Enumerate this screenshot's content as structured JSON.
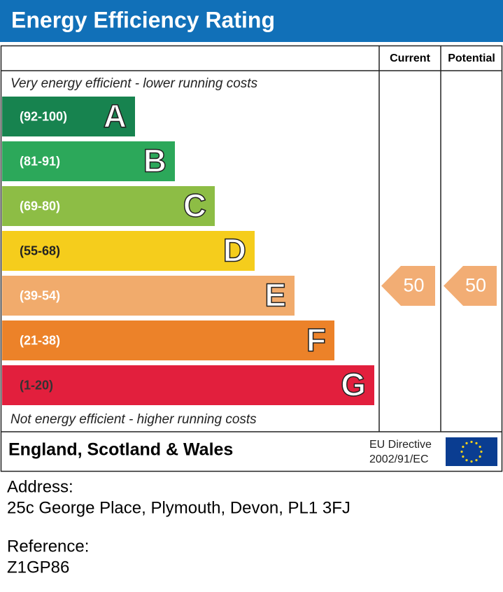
{
  "header": {
    "title": "Energy Efficiency Rating"
  },
  "columns": [
    "Current",
    "Potential"
  ],
  "top_note": "Very energy efficient - lower running costs",
  "bottom_note": "Not energy efficient - higher running costs",
  "bands": [
    {
      "range": "(92-100)",
      "letter": "A",
      "color": "#17834f"
    },
    {
      "range": "(81-91)",
      "letter": "B",
      "color": "#2ca85a"
    },
    {
      "range": "(69-80)",
      "letter": "C",
      "color": "#8dbd45"
    },
    {
      "range": "(55-68)",
      "letter": "D",
      "color": "#f5cd1c"
    },
    {
      "range": "(39-54)",
      "letter": "E",
      "color": "#f1ab6c"
    },
    {
      "range": "(21-38)",
      "letter": "F",
      "color": "#ec8229"
    },
    {
      "range": "(1-20)",
      "letter": "G",
      "color": "#e21f3d"
    }
  ],
  "ratings": {
    "current": 50,
    "potential": 50
  },
  "footer": {
    "region": "England, Scotland & Wales",
    "directive_line1": "EU Directive",
    "directive_line2": "2002/91/EC"
  },
  "address": {
    "label": "Address:",
    "value": "25c George Place, Plymouth, Devon, PL1 3FJ"
  },
  "reference": {
    "label": "Reference:",
    "value": "Z1GP86"
  }
}
